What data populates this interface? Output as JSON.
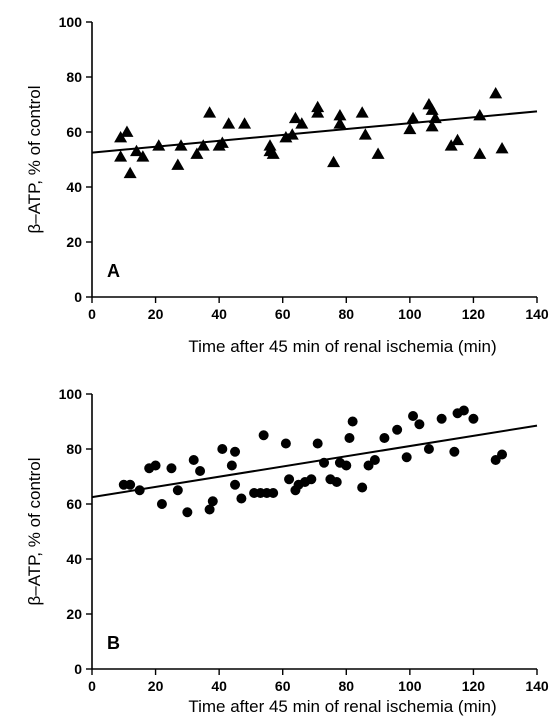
{
  "chart_data": [
    {
      "type": "scatter",
      "panel_label": "A",
      "marker": "triangle",
      "xlabel": "Time after 45 min  of renal ischemia (min)",
      "ylabel": "β–ATP, % of control",
      "xlim": [
        0,
        140
      ],
      "ylim": [
        0,
        100
      ],
      "xticks": [
        0,
        20,
        40,
        60,
        80,
        100,
        120,
        140
      ],
      "yticks": [
        0,
        20,
        40,
        60,
        80,
        100
      ],
      "grid": false,
      "points": [
        {
          "x": 9,
          "y": 51
        },
        {
          "x": 9,
          "y": 58
        },
        {
          "x": 11,
          "y": 60
        },
        {
          "x": 12,
          "y": 45
        },
        {
          "x": 14,
          "y": 53
        },
        {
          "x": 16,
          "y": 51
        },
        {
          "x": 21,
          "y": 55
        },
        {
          "x": 27,
          "y": 48
        },
        {
          "x": 28,
          "y": 55
        },
        {
          "x": 33,
          "y": 52
        },
        {
          "x": 35,
          "y": 55
        },
        {
          "x": 37,
          "y": 67
        },
        {
          "x": 40,
          "y": 55
        },
        {
          "x": 41,
          "y": 56
        },
        {
          "x": 43,
          "y": 63
        },
        {
          "x": 48,
          "y": 63
        },
        {
          "x": 56,
          "y": 53
        },
        {
          "x": 56,
          "y": 55
        },
        {
          "x": 57,
          "y": 52
        },
        {
          "x": 61,
          "y": 58
        },
        {
          "x": 63,
          "y": 59
        },
        {
          "x": 64,
          "y": 65
        },
        {
          "x": 66,
          "y": 63
        },
        {
          "x": 71,
          "y": 69
        },
        {
          "x": 71,
          "y": 67
        },
        {
          "x": 76,
          "y": 49
        },
        {
          "x": 78,
          "y": 63
        },
        {
          "x": 78,
          "y": 66
        },
        {
          "x": 85,
          "y": 67
        },
        {
          "x": 86,
          "y": 59
        },
        {
          "x": 90,
          "y": 52
        },
        {
          "x": 100,
          "y": 61
        },
        {
          "x": 101,
          "y": 65
        },
        {
          "x": 106,
          "y": 70
        },
        {
          "x": 107,
          "y": 68
        },
        {
          "x": 107,
          "y": 62
        },
        {
          "x": 108,
          "y": 65
        },
        {
          "x": 113,
          "y": 55
        },
        {
          "x": 115,
          "y": 57
        },
        {
          "x": 122,
          "y": 66
        },
        {
          "x": 122,
          "y": 52
        },
        {
          "x": 127,
          "y": 74
        },
        {
          "x": 129,
          "y": 54
        }
      ],
      "fit_line": {
        "x": [
          0,
          140
        ],
        "y": [
          52.5,
          67.5
        ]
      }
    },
    {
      "type": "scatter",
      "panel_label": "B",
      "marker": "circle",
      "xlabel": "Time after 45 min  of renal ischemia (min)",
      "ylabel": "β–ATP, % of control",
      "xlim": [
        0,
        140
      ],
      "ylim": [
        0,
        100
      ],
      "xticks": [
        0,
        20,
        40,
        60,
        80,
        100,
        120,
        140
      ],
      "yticks": [
        0,
        20,
        40,
        60,
        80,
        100
      ],
      "grid": false,
      "points": [
        {
          "x": 10,
          "y": 67
        },
        {
          "x": 12,
          "y": 67
        },
        {
          "x": 15,
          "y": 65
        },
        {
          "x": 18,
          "y": 73
        },
        {
          "x": 20,
          "y": 74
        },
        {
          "x": 22,
          "y": 60
        },
        {
          "x": 25,
          "y": 73
        },
        {
          "x": 27,
          "y": 65
        },
        {
          "x": 30,
          "y": 57
        },
        {
          "x": 32,
          "y": 76
        },
        {
          "x": 34,
          "y": 72
        },
        {
          "x": 37,
          "y": 58
        },
        {
          "x": 38,
          "y": 61
        },
        {
          "x": 41,
          "y": 80
        },
        {
          "x": 44,
          "y": 74
        },
        {
          "x": 45,
          "y": 67
        },
        {
          "x": 45,
          "y": 79
        },
        {
          "x": 47,
          "y": 62
        },
        {
          "x": 51,
          "y": 64
        },
        {
          "x": 53,
          "y": 64
        },
        {
          "x": 54,
          "y": 85
        },
        {
          "x": 55,
          "y": 64
        },
        {
          "x": 57,
          "y": 64
        },
        {
          "x": 61,
          "y": 82
        },
        {
          "x": 62,
          "y": 69
        },
        {
          "x": 64,
          "y": 65
        },
        {
          "x": 65,
          "y": 67
        },
        {
          "x": 67,
          "y": 68
        },
        {
          "x": 69,
          "y": 69
        },
        {
          "x": 71,
          "y": 82
        },
        {
          "x": 73,
          "y": 75
        },
        {
          "x": 75,
          "y": 69
        },
        {
          "x": 77,
          "y": 68
        },
        {
          "x": 78,
          "y": 75
        },
        {
          "x": 80,
          "y": 74
        },
        {
          "x": 81,
          "y": 84
        },
        {
          "x": 82,
          "y": 90
        },
        {
          "x": 85,
          "y": 66
        },
        {
          "x": 87,
          "y": 74
        },
        {
          "x": 89,
          "y": 76
        },
        {
          "x": 92,
          "y": 84
        },
        {
          "x": 96,
          "y": 87
        },
        {
          "x": 99,
          "y": 77
        },
        {
          "x": 101,
          "y": 92
        },
        {
          "x": 103,
          "y": 89
        },
        {
          "x": 106,
          "y": 80
        },
        {
          "x": 110,
          "y": 91
        },
        {
          "x": 114,
          "y": 79
        },
        {
          "x": 115,
          "y": 93
        },
        {
          "x": 117,
          "y": 94
        },
        {
          "x": 120,
          "y": 91
        },
        {
          "x": 127,
          "y": 76
        },
        {
          "x": 129,
          "y": 78
        }
      ],
      "fit_line": {
        "x": [
          0,
          140
        ],
        "y": [
          62.5,
          88.5
        ]
      }
    }
  ]
}
